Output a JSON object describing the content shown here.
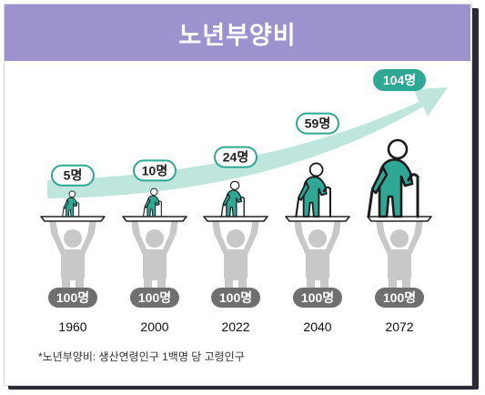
{
  "title": "노년부양비",
  "colors": {
    "header": "#9e92ce",
    "teal": "#2ea795",
    "teal_light": "#d8f0eb",
    "arrow": "#bfe6dc",
    "supporter": "#c8c8c8",
    "badge": "#6f6f6f"
  },
  "chart_data": {
    "type": "pictogram",
    "title": "노년부양비",
    "categories": [
      "1960",
      "2000",
      "2022",
      "2040",
      "2072"
    ],
    "series": [
      {
        "values": [
          5,
          10,
          24,
          59,
          104
        ]
      }
    ],
    "value_labels": [
      "5명",
      "10명",
      "24명",
      "59명",
      "104명"
    ],
    "base_value": 100,
    "base_label": "100명",
    "trend_arrow": true
  },
  "footnote": "*노년부양비: 생산연령인구 1백명 당 고령인구"
}
